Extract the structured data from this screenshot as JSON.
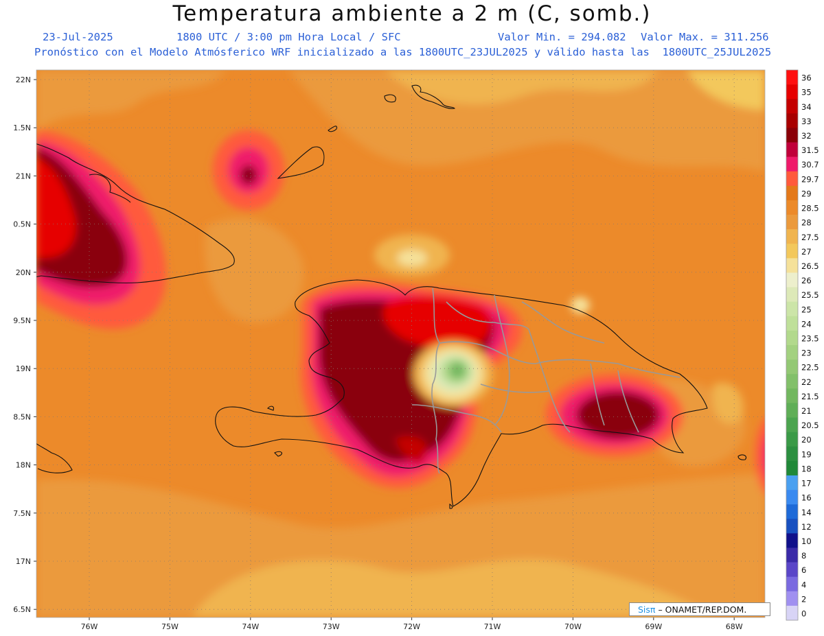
{
  "header": {
    "title": "Temperatura ambiente a 2 m (C, somb.)",
    "date": "23-Jul-2025",
    "time_info": "1800 UTC / 3:00 pm Hora Local / SFC",
    "valor_min_label": "Valor Min. = 294.082",
    "valor_max_label": "Valor Max. = 311.256",
    "model_note": "Pronóstico con el Modelo Atmósferico WRF inicializado a las 1800UTC_23JUL2025 y válido hasta las  1800UTC_25JUL2025"
  },
  "map": {
    "lat_labels": [
      "22N",
      "1.5N",
      "21N",
      "0.5N",
      "20N",
      "9.5N",
      "19N",
      "8.5N",
      "18N",
      "7.5N",
      "17N",
      "6.5N"
    ],
    "lon_labels": [
      "76W",
      "75W",
      "74W",
      "73W",
      "72W",
      "71W",
      "70W",
      "69W",
      "68W"
    ]
  },
  "colorbar": {
    "levels": [
      "36",
      "35",
      "34",
      "33",
      "32",
      "31.5",
      "30.7",
      "29.7",
      "29",
      "28.5",
      "28",
      "27.5",
      "27",
      "26.5",
      "26",
      "25.5",
      "25",
      "24",
      "23.5",
      "23",
      "22.5",
      "22",
      "21.5",
      "21",
      "20.5",
      "20",
      "19",
      "18",
      "17",
      "16",
      "14",
      "12",
      "10",
      "8",
      "6",
      "4",
      "2",
      "0"
    ],
    "colors": [
      "#ff1010",
      "#e60000",
      "#c40000",
      "#a80000",
      "#8a0008",
      "#c0003a",
      "#ef1a6a",
      "#ff5a3c",
      "#e4791a",
      "#ec8a2a",
      "#eb9a3d",
      "#f0b44f",
      "#f3c85c",
      "#f5e19a",
      "#edefcc",
      "#dde9b8",
      "#cce5a8",
      "#bfe09a",
      "#b2d98c",
      "#a3d180",
      "#93c874",
      "#82c06a",
      "#72b75f",
      "#5fae57",
      "#4ba44f",
      "#3a9a47",
      "#2c8f40",
      "#208838",
      "#4aa0f0",
      "#3a8af0",
      "#1e6ad8",
      "#1850c0",
      "#10108a",
      "#3a2aa8",
      "#5a46c8",
      "#7a6ae0",
      "#a090f0",
      "#d8d4f6"
    ]
  },
  "credit": {
    "logo": "Sisπ",
    "text": "– ONAMET/REP.DOM."
  }
}
